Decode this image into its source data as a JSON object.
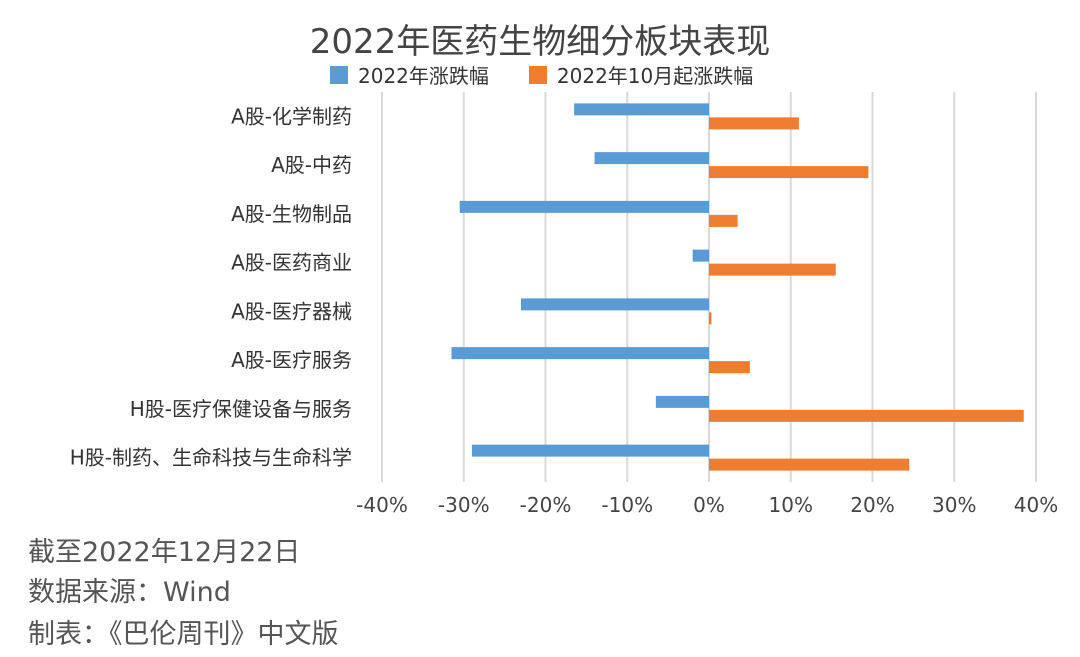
{
  "chart_data": {
    "type": "bar",
    "orientation": "horizontal",
    "title": "2022年医药生物细分板块表现",
    "categories": [
      "A股-化学制药",
      "A股-中药",
      "A股-生物制品",
      "A股-医药商业",
      "A股-医疗器械",
      "A股-医疗服务",
      "H股-医疗保健设备与服务",
      "H股-制药、生命科技与生命科学"
    ],
    "series": [
      {
        "name": "2022年涨跌幅",
        "color": "#5b9bd5",
        "values": [
          -16.5,
          -14,
          -30.5,
          -2,
          -23,
          -31.5,
          -6.5,
          -29
        ]
      },
      {
        "name": "2022年10月起涨跌幅",
        "color": "#ed7d31",
        "values": [
          11,
          19.5,
          3.5,
          15.5,
          0.3,
          5,
          38.5,
          24.5
        ]
      }
    ],
    "xlim": [
      -40,
      40
    ],
    "xticks": [
      -40,
      -30,
      -20,
      -10,
      0,
      10,
      20,
      30,
      40
    ],
    "xtick_labels": [
      "-40%",
      "-30%",
      "-20%",
      "-10%",
      "0%",
      "10%",
      "20%",
      "30%",
      "40%"
    ],
    "xlabel": "",
    "ylabel": "",
    "grid": "vertical",
    "legend": "top"
  },
  "notes": {
    "date": "截至2022年12月22日",
    "source": "数据来源：Wind",
    "maker": "制表：《巴伦周刊》中文版"
  }
}
